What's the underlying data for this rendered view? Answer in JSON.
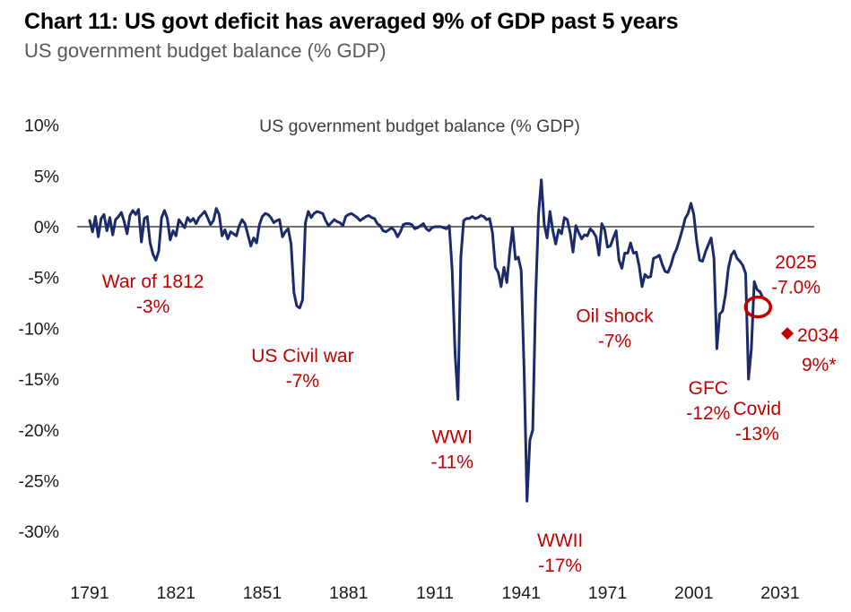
{
  "header": {
    "title": "Chart 11: US govt deficit has averaged 9% of GDP past 5 years",
    "subtitle": "US government budget balance (% GDP)"
  },
  "chart_data": {
    "type": "line",
    "title": "US government budget balance (% GDP)",
    "xlabel": "",
    "ylabel": "",
    "ylim": [
      -30,
      10
    ],
    "xlim": [
      1791,
      2031
    ],
    "grid": false,
    "legend": "none",
    "y_ticks": [
      10,
      5,
      0,
      -5,
      -10,
      -15,
      -20,
      -25,
      -30
    ],
    "y_tick_suffix": "%",
    "x_ticks": [
      1791,
      1821,
      1851,
      1881,
      1911,
      1941,
      1971,
      2001,
      2031
    ],
    "zero_line": true,
    "colors": {
      "line": "#1b2a6b",
      "annotation": "#c00000",
      "axis": "#404040",
      "tick_text": "#1a1a1a",
      "plot_title_text": "#3d3d3d"
    },
    "series": [
      {
        "name": "US government budget balance (% GDP)",
        "start_year": 1791,
        "end_year": 2025,
        "values": [
          0.6,
          -0.5,
          1.0,
          -1.0,
          0.8,
          1.2,
          -0.4,
          0.9,
          -0.8,
          0.7,
          1.0,
          1.4,
          0.5,
          -0.7,
          1.1,
          1.6,
          1.2,
          1.7,
          -1.5,
          0.8,
          1.0,
          -1.6,
          -2.7,
          -3.3,
          -2.4,
          0.9,
          1.6,
          0.8,
          -1.3,
          -0.4,
          -0.9,
          0.7,
          0.3,
          -0.1,
          0.9,
          0.5,
          0.8,
          0.3,
          0.9,
          1.2,
          1.5,
          0.9,
          0.2,
          0.6,
          1.8,
          1.2,
          -0.9,
          -0.3,
          -1.2,
          -0.5,
          -0.7,
          -0.9,
          0.1,
          0.7,
          0.3,
          -0.8,
          -1.9,
          -1.1,
          -1.6,
          0.2,
          1.0,
          1.3,
          1.2,
          0.9,
          0.4,
          0.6,
          0.7,
          -1.0,
          -0.5,
          -0.2,
          -1.7,
          -6.5,
          -7.8,
          -8.0,
          -7.2,
          0.4,
          1.5,
          0.9,
          1.3,
          1.5,
          1.4,
          1.3,
          0.6,
          0.1,
          0.4,
          0.7,
          0.5,
          0.4,
          0.1,
          1.0,
          1.2,
          1.3,
          1.1,
          0.9,
          0.6,
          0.8,
          1.0,
          1.1,
          0.9,
          0.8,
          0.3,
          0.1,
          -0.4,
          -0.5,
          -0.3,
          -0.1,
          -0.4,
          -1.0,
          -0.5,
          0.2,
          0.3,
          0.3,
          0.2,
          -0.2,
          -0.1,
          0.1,
          0.3,
          -0.2,
          -0.4,
          -0.1,
          0.0,
          0.0,
          0.0,
          -0.1,
          -0.2,
          0.1,
          -4.2,
          -12.5,
          -17.0,
          -3.0,
          0.6,
          0.8,
          0.8,
          1.0,
          0.8,
          0.9,
          1.1,
          1.0,
          0.7,
          0.8,
          -0.6,
          -4.0,
          -4.5,
          -5.9,
          -4.0,
          -5.5,
          -2.5,
          -0.1,
          -3.2,
          -3.0,
          -4.3,
          -14.2,
          -27.0,
          -21.0,
          -20.0,
          -7.0,
          1.2,
          4.6,
          0.2,
          -1.1,
          1.5,
          -0.4,
          -1.7,
          -0.3,
          -0.7,
          0.9,
          0.7,
          -0.6,
          -2.5,
          0.1,
          -0.6,
          -1.2,
          -0.8,
          -0.9,
          -0.2,
          -0.5,
          -1.0,
          -2.8,
          0.3,
          -0.3,
          -2.0,
          -1.9,
          -1.1,
          -0.4,
          -3.3,
          -4.1,
          -2.6,
          -2.6,
          -1.6,
          -2.6,
          -2.5,
          -3.9,
          -5.9,
          -4.7,
          -5.0,
          -4.9,
          -3.1,
          -3.0,
          -2.8,
          -3.7,
          -4.4,
          -4.5,
          -3.8,
          -2.8,
          -2.2,
          -1.3,
          -0.3,
          0.8,
          1.3,
          2.3,
          1.2,
          -1.5,
          -3.3,
          -3.4,
          -2.5,
          -1.8,
          -1.1,
          -3.1,
          -12.0,
          -8.6,
          -8.3,
          -6.7,
          -4.1,
          -2.8,
          -2.4,
          -3.1,
          -3.4,
          -3.8,
          -4.6,
          -15.0,
          -12.0,
          -5.4,
          -6.2,
          -6.4,
          -7.0
        ]
      }
    ],
    "annotations": [
      {
        "id": "war-of-1812",
        "lines": [
          "War of 1812",
          "-3%"
        ],
        "x": 1813,
        "y_pct": -6.0
      },
      {
        "id": "us-civil-war",
        "lines": [
          "US Civil war",
          "-7%"
        ],
        "x": 1865,
        "y_pct": -13.3
      },
      {
        "id": "wwi",
        "lines": [
          "WWI",
          "-11%"
        ],
        "x": 1917,
        "y_pct": -21.3
      },
      {
        "id": "wwii",
        "lines": [
          "WWII",
          "-17%"
        ],
        "x": 1954.5,
        "y_pct": -31.5
      },
      {
        "id": "oil-shock",
        "lines": [
          "Oil shock",
          "-7%"
        ],
        "x": 1973.5,
        "y_pct": -9.4
      },
      {
        "id": "gfc",
        "lines": [
          "GFC",
          "-12%"
        ],
        "x": 2006,
        "y_pct": -16.5
      },
      {
        "id": "covid",
        "lines": [
          "Covid",
          "-13%"
        ],
        "x": 2023,
        "y_pct": -18.5
      },
      {
        "id": "latest-2025",
        "lines": [
          "2025",
          "-7.0%"
        ],
        "x": 2036.5,
        "y_pct": -4.1
      }
    ],
    "forecast_marker": {
      "shape": "diamond",
      "year": 2033.5,
      "value_pct": -10.5,
      "lines": [
        "2034",
        "9%*"
      ]
    },
    "highlight_circle": {
      "year": 2023.3,
      "value_pct": -7.9
    }
  }
}
